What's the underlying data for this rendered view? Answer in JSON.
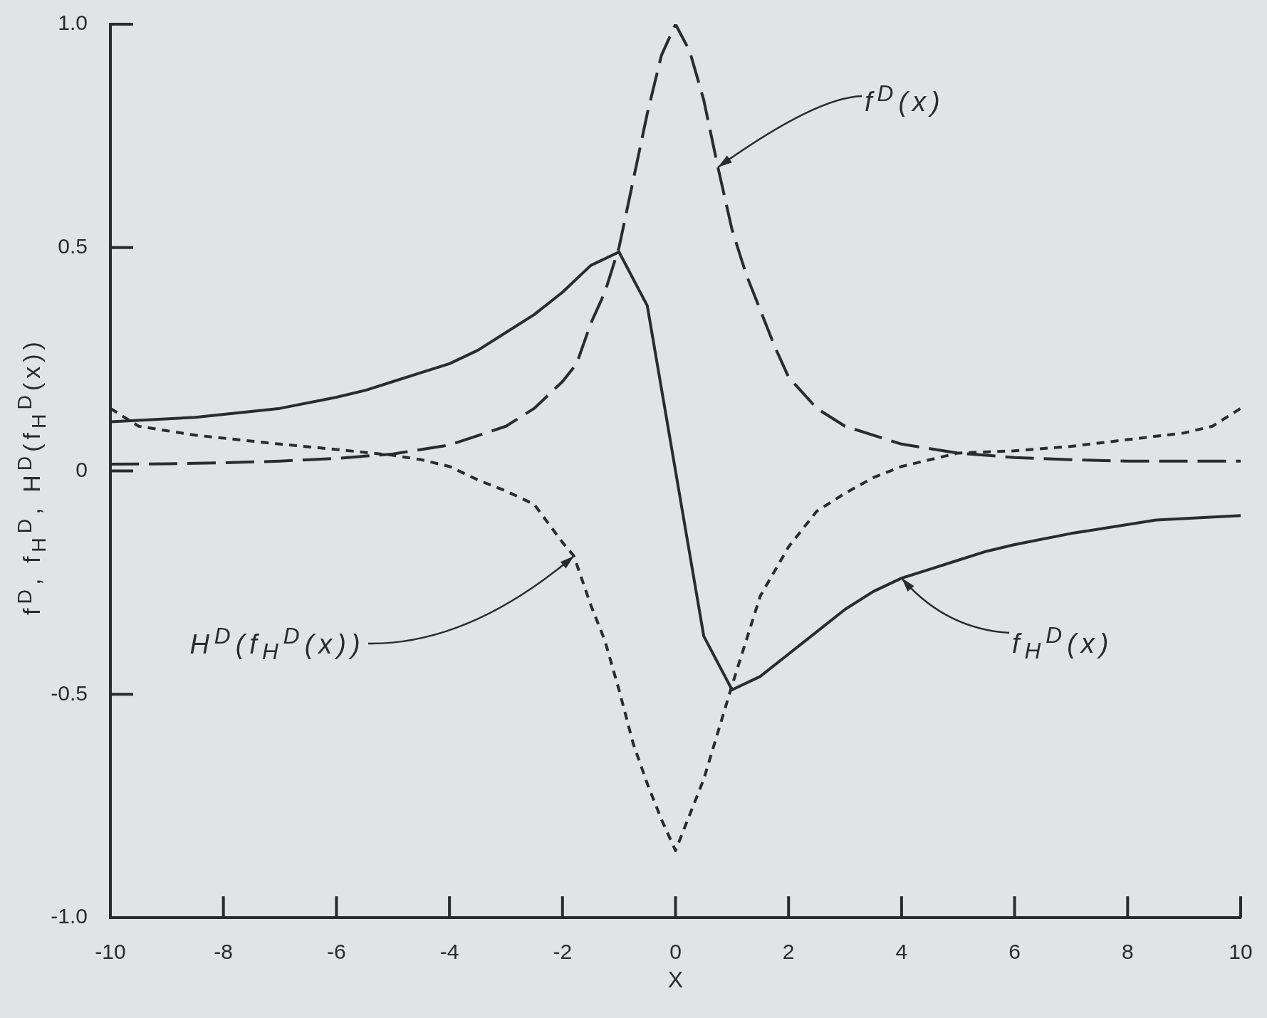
{
  "chart_data": {
    "type": "line",
    "xlabel": "X",
    "ylabel": "f$^{D}$, f$_{H}$$^{D}$, H$^{D}$(f$_{H}$$^{D}$(x))",
    "xlim": [
      -10,
      10
    ],
    "xticks": [
      -10,
      -8,
      -6,
      -4,
      -2,
      0,
      2,
      4,
      6,
      8,
      10
    ],
    "ylim": [
      -1,
      1
    ],
    "yticks": [
      {
        "value": -1,
        "label": "-1.0"
      },
      -0.5,
      0,
      0.5,
      {
        "value": 1,
        "label": "1.0"
      }
    ],
    "annotations": [
      {
        "text": "f$^{D}$(x)",
        "x": 0.75,
        "y": 0.68
      },
      {
        "text": "f$_{H}$$^{D}$(x)",
        "x": 4,
        "y": -0.24
      },
      {
        "text": "H$^{D}$(f$_{H}$$^{D}$(x))",
        "x": -1.8,
        "y": -0.19
      }
    ],
    "series": [
      {
        "color": "#2b2b2b",
        "line_style": "dashed",
        "x": [
          -10,
          -9,
          -8,
          -7,
          -6,
          -5,
          -4,
          -3,
          -2.5,
          -2,
          -1.75,
          -1.5,
          -1.25,
          -1,
          -0.75,
          -0.5,
          -0.25,
          0,
          0.25,
          0.5,
          0.75,
          1,
          1.25,
          1.5,
          1.75,
          2,
          2.5,
          3,
          4,
          5,
          6,
          7,
          8,
          9,
          10
        ],
        "values": [
          0.015,
          0.016,
          0.018,
          0.022,
          0.028,
          0.038,
          0.058,
          0.1,
          0.14,
          0.2,
          0.24,
          0.33,
          0.4,
          0.5,
          0.65,
          0.8,
          0.93,
          1.0,
          0.94,
          0.83,
          0.68,
          0.54,
          0.44,
          0.36,
          0.28,
          0.21,
          0.14,
          0.1,
          0.06,
          0.04,
          0.03,
          0.025,
          0.022,
          0.022,
          0.022
        ]
      },
      {
        "color": "#2b2b2b",
        "line_style": "solid",
        "x": [
          -10,
          -8.5,
          -7,
          -6,
          -5.5,
          -5,
          -4.5,
          -4,
          -3.5,
          -3,
          -2.5,
          -2,
          -1.5,
          -1,
          -0.5,
          0.5,
          1,
          1.5,
          2,
          2.5,
          3,
          3.5,
          4,
          4.5,
          5,
          5.5,
          6,
          7,
          8.5,
          10
        ],
        "values": [
          0.11,
          0.12,
          0.14,
          0.165,
          0.18,
          0.2,
          0.22,
          0.24,
          0.27,
          0.31,
          0.35,
          0.4,
          0.46,
          0.49,
          0.37,
          -0.37,
          -0.49,
          -0.46,
          -0.41,
          -0.36,
          -0.31,
          -0.27,
          -0.24,
          -0.22,
          -0.2,
          -0.18,
          -0.165,
          -0.14,
          -0.11,
          -0.1
        ]
      },
      {
        "color": "#2b2b2b",
        "line_style": "dotted",
        "x": [
          -10,
          -9.5,
          -8.5,
          -7,
          -6,
          -5,
          -4.5,
          -4,
          -3.5,
          -3,
          -2.5,
          -2,
          -1.8,
          -1.5,
          -1.25,
          -1,
          -0.75,
          -0.5,
          -0.25,
          0,
          0.25,
          0.5,
          0.75,
          1,
          1.25,
          1.5,
          2,
          2.5,
          3,
          3.5,
          4,
          5,
          6,
          7,
          8,
          9,
          9.5,
          10
        ],
        "values": [
          0.14,
          0.1,
          0.08,
          0.06,
          0.048,
          0.035,
          0.025,
          0.01,
          -0.02,
          -0.045,
          -0.075,
          -0.16,
          -0.19,
          -0.3,
          -0.38,
          -0.49,
          -0.61,
          -0.7,
          -0.78,
          -0.85,
          -0.77,
          -0.69,
          -0.585,
          -0.48,
          -0.38,
          -0.28,
          -0.17,
          -0.09,
          -0.05,
          -0.015,
          0.01,
          0.04,
          0.045,
          0.055,
          0.07,
          0.085,
          0.1,
          0.14
        ]
      }
    ]
  }
}
